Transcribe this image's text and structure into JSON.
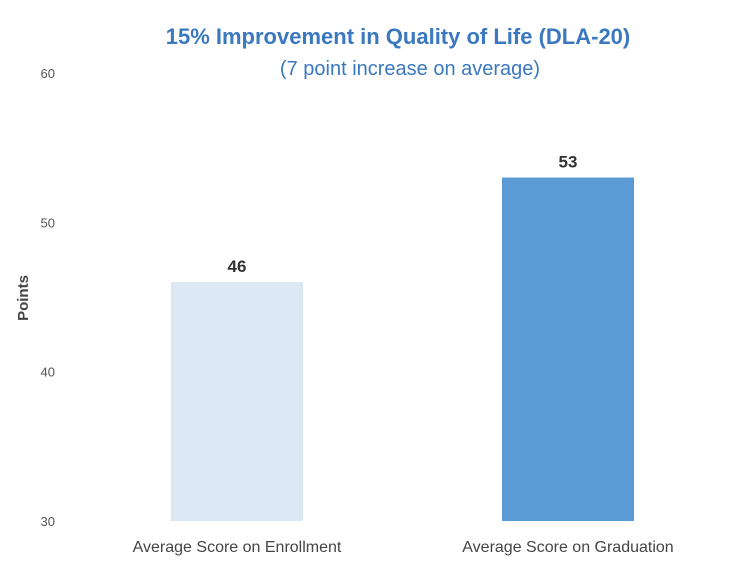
{
  "chart_data": {
    "type": "bar",
    "title": "15% Improvement in Quality of Life (DLA-20)",
    "subtitle": "(7 point increase on average)",
    "xlabel": "",
    "ylabel": "Points",
    "categories": [
      "Average Score on Enrollment",
      "Average Score on Graduation"
    ],
    "values": [
      46,
      53
    ],
    "data_labels": [
      "46",
      "53"
    ],
    "ylim": [
      30,
      60
    ],
    "yticks": [
      "30",
      "40",
      "50",
      "60"
    ],
    "bar_colors": [
      "#dde8f5",
      "#5b9bd5"
    ],
    "grid": false,
    "legend": "none"
  }
}
